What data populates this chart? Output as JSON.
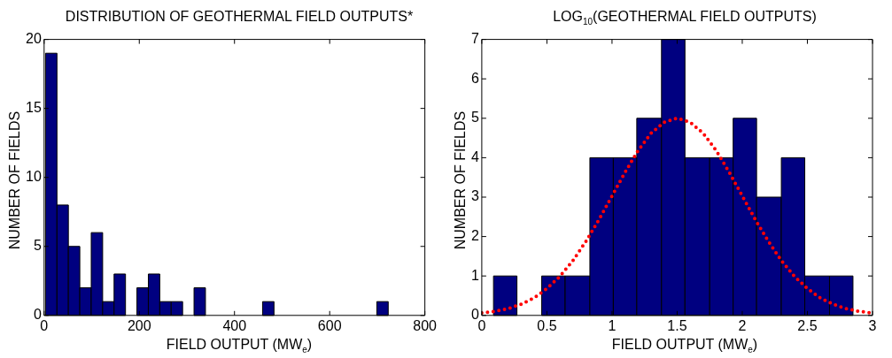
{
  "chart_data": [
    {
      "type": "histogram",
      "title": "DISTRIBUTION OF GEOTHERMAL FIELD OUTPUTS*",
      "xlabel": "FIELD OUTPUT (MW$_{e}$)",
      "ylabel": "NUMBER OF FIELDS",
      "bins": [
        3,
        27,
        51,
        75,
        99,
        123,
        147,
        171,
        195,
        219,
        243,
        267,
        291,
        315,
        339,
        363,
        387,
        411,
        435,
        459,
        483,
        507,
        531,
        555,
        579,
        603,
        627,
        651,
        675,
        699,
        723
      ],
      "values": [
        19,
        8,
        5,
        2,
        6,
        1,
        3,
        0,
        2,
        3,
        1,
        1,
        0,
        2,
        0,
        0,
        0,
        0,
        0,
        1,
        0,
        0,
        0,
        0,
        0,
        0,
        0,
        0,
        0,
        1
      ],
      "color": "#000080",
      "xlim": [
        0,
        800
      ],
      "xticks": [
        0,
        200,
        400,
        600,
        800
      ],
      "ylim": [
        0,
        20
      ],
      "yticks": [
        0,
        5,
        10,
        15,
        20
      ],
      "grid": false
    },
    {
      "type": "histogram",
      "title": "LOG$_{10}$(GEOTHERMAL FIELD OUTPUTS)",
      "xlabel": "FIELD OUTPUT (MW$_{e}$)",
      "ylabel": "NUMBER OF FIELDS",
      "bins": [
        0.09,
        0.27,
        0.46,
        0.64,
        0.83,
        1.01,
        1.19,
        1.38,
        1.56,
        1.75,
        1.93,
        2.11,
        2.3,
        2.48,
        2.67,
        2.85
      ],
      "series": [
        {
          "type": "histogram",
          "color": "#000080",
          "values": [
            1,
            0,
            1,
            1,
            4,
            4,
            5,
            7,
            4,
            4,
            5,
            3,
            4,
            1,
            1
          ]
        },
        {
          "type": "line",
          "color": "#ff0000",
          "line_style": "dotted",
          "marker": "none",
          "x": [
            0,
            0.1,
            0.2,
            0.3,
            0.4,
            0.5,
            0.6,
            0.7,
            0.8,
            0.9,
            1,
            1.1,
            1.2,
            1.3,
            1.4,
            1.5,
            1.6,
            1.7,
            1.8,
            1.9,
            2,
            2.1,
            2.2,
            2.3,
            2.4,
            2.5,
            2.6,
            2.7,
            2.8,
            2.9,
            3
          ],
          "values": [
            0.06,
            0.1,
            0.17,
            0.28,
            0.44,
            0.68,
            0.99,
            1.39,
            1.88,
            2.43,
            3.03,
            3.63,
            4.18,
            4.62,
            4.9,
            5,
            4.9,
            4.62,
            4.18,
            3.63,
            3.03,
            2.43,
            1.88,
            1.39,
            0.99,
            0.68,
            0.44,
            0.28,
            0.17,
            0.1,
            0.06
          ]
        }
      ],
      "xlim": [
        0,
        3
      ],
      "xticks": [
        0,
        0.5,
        1,
        1.5,
        2,
        2.5,
        3
      ],
      "ylim": [
        0,
        7
      ],
      "yticks": [
        0,
        1,
        2,
        3,
        4,
        5,
        6,
        7
      ],
      "grid": false
    }
  ]
}
